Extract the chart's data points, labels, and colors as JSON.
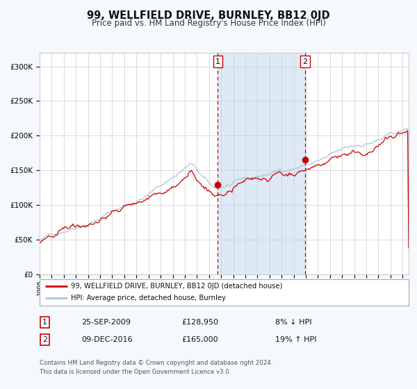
{
  "title": "99, WELLFIELD DRIVE, BURNLEY, BB12 0JD",
  "subtitle": "Price paid vs. HM Land Registry's House Price Index (HPI)",
  "title_fontsize": 10.5,
  "subtitle_fontsize": 8.5,
  "xlim_start": 1995.0,
  "xlim_end": 2025.5,
  "ylim_bottom": 0,
  "ylim_top": 320000,
  "yticks": [
    0,
    50000,
    100000,
    150000,
    200000,
    250000,
    300000
  ],
  "ytick_labels": [
    "£0",
    "£50K",
    "£100K",
    "£150K",
    "£200K",
    "£250K",
    "£300K"
  ],
  "hpi_color": "#aac4dd",
  "price_color": "#cc0000",
  "bg_color": "#f5f8fc",
  "plot_bg": "#ffffff",
  "shade_color": "#ddeaf5",
  "dashed_color": "#cc0000",
  "marker_color": "#cc0000",
  "sale1_x": 2009.73,
  "sale1_y": 128950,
  "sale1_label": "1",
  "sale2_x": 2016.93,
  "sale2_y": 165000,
  "sale2_label": "2",
  "legend_line1": "99, WELLFIELD DRIVE, BURNLEY, BB12 0JD (detached house)",
  "legend_line2": "HPI: Average price, detached house, Burnley",
  "table_row1_num": "1",
  "table_row1_date": "25-SEP-2009",
  "table_row1_price": "£128,950",
  "table_row1_hpi": "8% ↓ HPI",
  "table_row2_num": "2",
  "table_row2_date": "09-DEC-2016",
  "table_row2_price": "£165,000",
  "table_row2_hpi": "19% ↑ HPI",
  "footer": "Contains HM Land Registry data © Crown copyright and database right 2024.\nThis data is licensed under the Open Government Licence v3.0.",
  "grid_color": "#cccccc",
  "legend_border": "#aaaaaa"
}
